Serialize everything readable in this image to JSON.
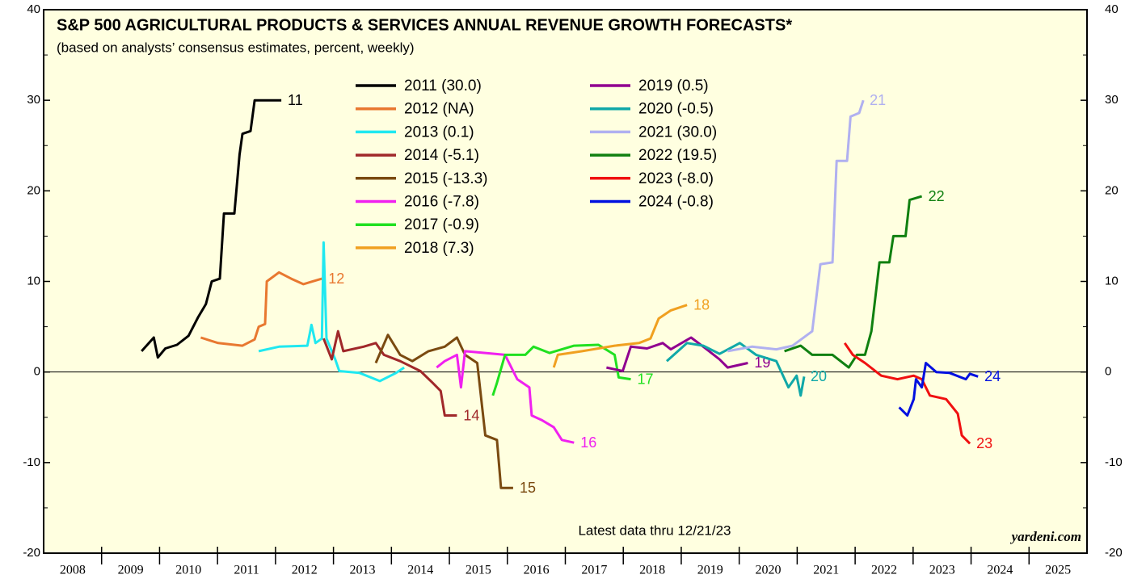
{
  "chart_data": {
    "type": "line",
    "title": "S&P 500 AGRICULTURAL PRODUCTS & SERVICES ANNUAL REVENUE GROWTH FORECASTS*",
    "subtitle": "(based on analysts’ consensus estimates, percent, weekly)",
    "annotations": [
      "Latest data thru  12/21/23",
      "yardeni.com"
    ],
    "xlim": [
      2008,
      2026
    ],
    "xticks": [
      {
        "value": 2008,
        "label": "2008"
      },
      {
        "value": 2009,
        "label": "2009"
      },
      {
        "value": 2010,
        "label": "2010"
      },
      {
        "value": 2011,
        "label": "2011"
      },
      {
        "value": 2012,
        "label": "2012"
      },
      {
        "value": 2013,
        "label": "2013"
      },
      {
        "value": 2014,
        "label": "2014"
      },
      {
        "value": 2015,
        "label": "2015"
      },
      {
        "value": 2016,
        "label": "2016"
      },
      {
        "value": 2017,
        "label": "2017"
      },
      {
        "value": 2018,
        "label": "2018"
      },
      {
        "value": 2019,
        "label": "2019"
      },
      {
        "value": 2020,
        "label": "2020"
      },
      {
        "value": 2021,
        "label": "2021"
      },
      {
        "value": 2022,
        "label": "2022"
      },
      {
        "value": 2023,
        "label": "2023"
      },
      {
        "value": 2024,
        "label": "2024"
      },
      {
        "value": 2025,
        "label": "2025"
      }
    ],
    "ylim": [
      -20,
      40
    ],
    "yticks": [
      -20,
      -10,
      0,
      10,
      20,
      30,
      40
    ],
    "y2lim": [
      -20,
      40
    ],
    "y2ticks": [
      -20,
      -10,
      0,
      10,
      20,
      30,
      40
    ],
    "series": [
      {
        "name": "2011 (30.0)",
        "end_label": "11",
        "color": "#000000",
        "x": [
          2009.69,
          2009.9,
          2009.97,
          2010.1,
          2010.3,
          2010.5,
          2010.66,
          2010.8,
          2010.9,
          2011.04,
          2011.11,
          2011.29,
          2011.38,
          2011.43,
          2011.57,
          2011.64,
          2012.1
        ],
        "values": [
          2.3,
          3.8,
          1.6,
          2.6,
          3.0,
          4.0,
          6.0,
          7.5,
          10.0,
          10.3,
          17.5,
          17.5,
          24,
          26.3,
          26.6,
          30,
          30
        ]
      },
      {
        "name": "2012 (NA)",
        "end_label": "12",
        "color": "#e87830",
        "x": [
          2010.71,
          2011.01,
          2011.43,
          2011.64,
          2011.71,
          2011.82,
          2011.85,
          2012.06,
          2012.27,
          2012.48,
          2012.8
        ],
        "values": [
          3.8,
          3.2,
          2.9,
          3.6,
          5,
          5.3,
          10,
          11,
          10.3,
          9.7,
          10.3
        ]
      },
      {
        "name": "2013 (0.1)",
        "color": "#20e8f0",
        "x": [
          2011.71,
          2012.06,
          2012.55,
          2012.62,
          2012.69,
          2012.8,
          2012.83,
          2012.88,
          2013.03,
          2013.1,
          2013.45,
          2013.8,
          2014.08,
          2014.22
        ],
        "values": [
          2.3,
          2.8,
          2.9,
          5.2,
          3.2,
          3.7,
          14.3,
          3.7,
          1.4,
          0.1,
          -0.1,
          -1,
          -0.1,
          0.5
        ]
      },
      {
        "name": "2014 (-5.1)",
        "end_label": "14",
        "color": "#a0282a",
        "x": [
          2012.83,
          2012.97,
          2013.08,
          2013.17,
          2013.52,
          2013.73,
          2013.87,
          2014.15,
          2014.5,
          2014.71,
          2014.85,
          2014.92,
          2015.13
        ],
        "values": [
          3.7,
          1.4,
          4.5,
          2.3,
          2.8,
          3.2,
          1.9,
          1.2,
          0.1,
          -1.2,
          -2.1,
          -4.8,
          -4.8
        ]
      },
      {
        "name": "2015 (-13.3)",
        "end_label": "15",
        "color": "#7a4a10",
        "x": [
          2013.73,
          2013.94,
          2014.15,
          2014.36,
          2014.64,
          2014.92,
          2015.13,
          2015.27,
          2015.48,
          2015.62,
          2015.82,
          2015.89,
          2016.1
        ],
        "values": [
          1,
          4.1,
          1.9,
          1.2,
          2.3,
          2.8,
          3.8,
          1.9,
          1,
          -7,
          -7.5,
          -12.8,
          -12.8
        ]
      },
      {
        "name": "2016 (-7.8)",
        "end_label": "16",
        "color": "#f020f0",
        "x": [
          2014.78,
          2014.92,
          2015.13,
          2015.2,
          2015.27,
          2015.62,
          2015.96,
          2016.17,
          2016.38,
          2016.42,
          2016.59,
          2016.8,
          2016.94,
          2017.15
        ],
        "values": [
          0.5,
          1.2,
          1.9,
          -1.7,
          2.3,
          2.1,
          1.9,
          -0.8,
          -1.7,
          -4.8,
          -5.3,
          -6.1,
          -7.5,
          -7.8
        ]
      },
      {
        "name": "2017 (-0.9)",
        "end_label": "17",
        "color": "#20e020",
        "x": [
          2015.75,
          2015.82,
          2015.96,
          2016.31,
          2016.45,
          2016.73,
          2017.15,
          2017.57,
          2017.85,
          2017.92,
          2018.13
        ],
        "values": [
          -2.6,
          -1.2,
          1.9,
          1.9,
          2.8,
          2.1,
          2.9,
          3,
          1.9,
          -0.6,
          -0.8
        ]
      },
      {
        "name": "2018 (7.3)",
        "end_label": "18",
        "color": "#f0a020",
        "x": [
          2016.8,
          2016.87,
          2017.29,
          2017.85,
          2018.27,
          2018.47,
          2018.61,
          2018.82,
          2019.1
        ],
        "values": [
          0.5,
          1.9,
          2.3,
          2.9,
          3.2,
          3.7,
          5.9,
          6.8,
          7.4
        ]
      },
      {
        "name": "2019 (0.5)",
        "end_label": "19",
        "color": "#900090",
        "x": [
          2017.71,
          2017.99,
          2018.13,
          2018.41,
          2018.68,
          2018.82,
          2019.17,
          2019.38,
          2019.66,
          2019.8,
          2020.15
        ],
        "values": [
          0.5,
          0.1,
          2.8,
          2.6,
          3.2,
          2.5,
          3.8,
          2.8,
          1.4,
          0.5,
          1
        ]
      },
      {
        "name": "2020 (-0.5)",
        "end_label": "20",
        "color": "#10a8a8",
        "x": [
          2018.75,
          2019.1,
          2019.38,
          2019.66,
          2020.01,
          2020.29,
          2020.64,
          2020.85,
          2020.99,
          2021.06,
          2021.12
        ],
        "values": [
          1.2,
          3.2,
          2.9,
          2,
          3.2,
          1.9,
          1.2,
          -1.7,
          -0.4,
          -2.6,
          -0.5
        ]
      },
      {
        "name": "2021 (30.0)",
        "end_label": "21",
        "color": "#b0b0f0",
        "x": [
          2019.8,
          2020.22,
          2020.64,
          2020.92,
          2021.26,
          2021.4,
          2021.61,
          2021.68,
          2021.86,
          2021.92,
          2022.07,
          2022.14
        ],
        "values": [
          2.3,
          2.8,
          2.5,
          2.9,
          4.5,
          11.9,
          12.1,
          23.3,
          23.3,
          28.2,
          28.6,
          30
        ]
      },
      {
        "name": "2022 (19.5)",
        "end_label": "22",
        "color": "#108010",
        "x": [
          2020.78,
          2021.06,
          2021.26,
          2021.61,
          2021.89,
          2022.03,
          2022.17,
          2022.28,
          2022.42,
          2022.59,
          2022.66,
          2022.87,
          2022.94,
          2023.15
        ],
        "values": [
          2.3,
          2.9,
          1.9,
          1.9,
          0.5,
          1.9,
          1.9,
          4.5,
          12.1,
          12.1,
          15,
          15,
          19,
          19.4
        ]
      },
      {
        "name": "2023 (-8.0)",
        "end_label": "23",
        "color": "#f01010",
        "x": [
          2021.82,
          2021.96,
          2022.17,
          2022.45,
          2022.73,
          2023.01,
          2023.15,
          2023.29,
          2023.57,
          2023.77,
          2023.84,
          2023.98
        ],
        "values": [
          3.2,
          1.9,
          1,
          -0.4,
          -0.8,
          -0.4,
          -0.8,
          -2.6,
          -3,
          -4.6,
          -7,
          -7.9
        ]
      },
      {
        "name": "2024 (-0.8)",
        "end_label": "24",
        "color": "#0010e0",
        "x": [
          2022.76,
          2022.9,
          2023.01,
          2023.05,
          2023.15,
          2023.22,
          2023.4,
          2023.63,
          2023.91,
          2023.98,
          2024.12
        ],
        "values": [
          -3.9,
          -4.8,
          -3,
          -0.8,
          -1.7,
          1,
          0,
          -0.1,
          -0.8,
          -0.2,
          -0.5
        ]
      }
    ]
  }
}
